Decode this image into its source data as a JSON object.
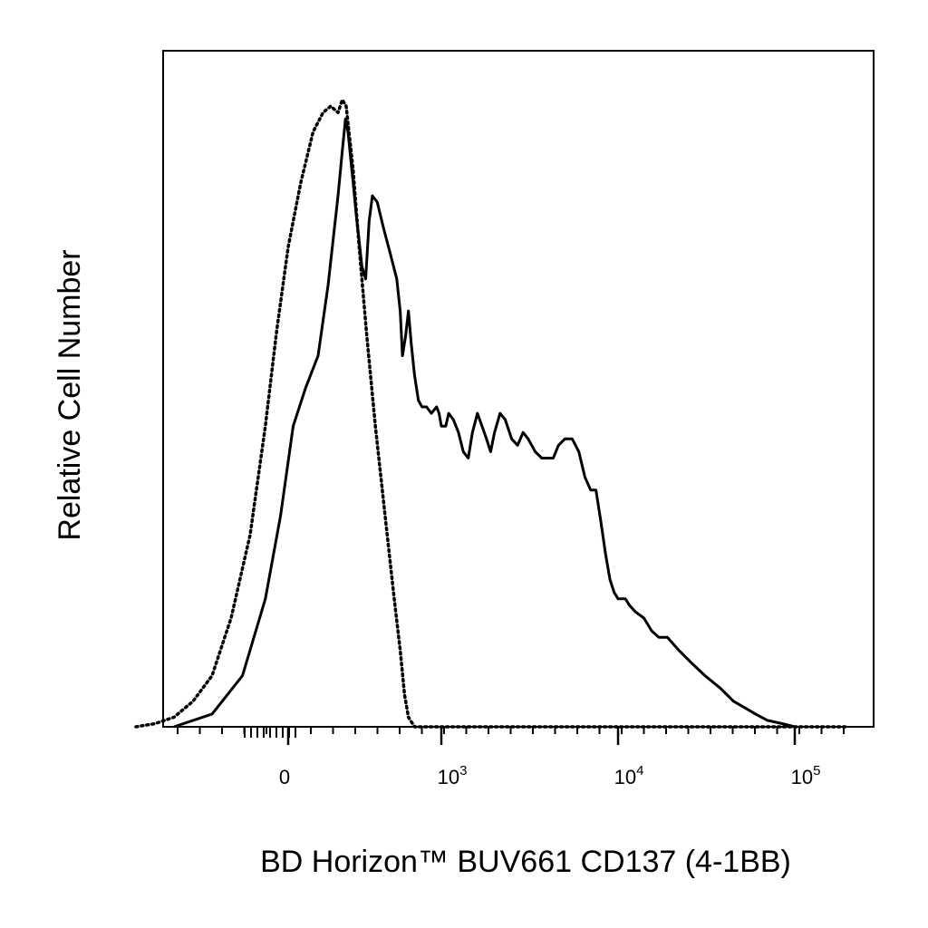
{
  "chart_data": {
    "type": "line",
    "title": "",
    "xlabel": "BD Horizon™ BUV661 CD137 (4-1BB)",
    "ylabel": "Relative Cell Number",
    "x_scale": "biexponential",
    "xlim": [
      -400,
      200000
    ],
    "ylim": [
      0,
      1.0
    ],
    "grid": false,
    "legend": "none",
    "x_ticks": [
      {
        "value": 0,
        "label": "0",
        "exp": ""
      },
      {
        "value": 1000,
        "label": "10",
        "exp": "3"
      },
      {
        "value": 10000,
        "label": "10",
        "exp": "4"
      },
      {
        "value": 100000,
        "label": "10",
        "exp": "5"
      }
    ],
    "series": [
      {
        "style": "solid",
        "color": "#000000",
        "points": [
          [
            -300,
            0.0
          ],
          [
            -200,
            0.02
          ],
          [
            -120,
            0.08
          ],
          [
            -60,
            0.2
          ],
          [
            -20,
            0.33
          ],
          [
            10,
            0.47
          ],
          [
            35,
            0.53
          ],
          [
            60,
            0.58
          ],
          [
            80,
            0.69
          ],
          [
            100,
            0.83
          ],
          [
            110,
            0.9
          ],
          [
            118,
            0.95
          ],
          [
            125,
            0.93
          ],
          [
            140,
            0.85
          ],
          [
            150,
            0.8
          ],
          [
            160,
            0.76
          ],
          [
            170,
            0.72
          ],
          [
            185,
            0.7
          ],
          [
            200,
            0.79
          ],
          [
            215,
            0.83
          ],
          [
            240,
            0.82
          ],
          [
            275,
            0.78
          ],
          [
            320,
            0.74
          ],
          [
            370,
            0.7
          ],
          [
            400,
            0.65
          ],
          [
            420,
            0.58
          ],
          [
            450,
            0.61
          ],
          [
            480,
            0.65
          ],
          [
            510,
            0.6
          ],
          [
            550,
            0.55
          ],
          [
            600,
            0.51
          ],
          [
            650,
            0.5
          ],
          [
            720,
            0.5
          ],
          [
            800,
            0.49
          ],
          [
            900,
            0.5
          ],
          [
            950,
            0.49
          ],
          [
            1000,
            0.47
          ],
          [
            1060,
            0.47
          ],
          [
            1100,
            0.49
          ],
          [
            1170,
            0.48
          ],
          [
            1250,
            0.46
          ],
          [
            1330,
            0.43
          ],
          [
            1420,
            0.42
          ],
          [
            1500,
            0.46
          ],
          [
            1600,
            0.49
          ],
          [
            1700,
            0.47
          ],
          [
            1800,
            0.45
          ],
          [
            1900,
            0.43
          ],
          [
            2000,
            0.46
          ],
          [
            2150,
            0.49
          ],
          [
            2300,
            0.48
          ],
          [
            2500,
            0.45
          ],
          [
            2700,
            0.44
          ],
          [
            2900,
            0.46
          ],
          [
            3100,
            0.45
          ],
          [
            3400,
            0.43
          ],
          [
            3700,
            0.42
          ],
          [
            4000,
            0.42
          ],
          [
            4300,
            0.42
          ],
          [
            4600,
            0.44
          ],
          [
            5000,
            0.45
          ],
          [
            5500,
            0.45
          ],
          [
            6000,
            0.43
          ],
          [
            6500,
            0.39
          ],
          [
            7000,
            0.37
          ],
          [
            7500,
            0.37
          ],
          [
            8000,
            0.32
          ],
          [
            8500,
            0.27
          ],
          [
            9000,
            0.23
          ],
          [
            9500,
            0.21
          ],
          [
            10000,
            0.2
          ],
          [
            10500,
            0.2
          ],
          [
            11000,
            0.2
          ],
          [
            11600,
            0.19
          ],
          [
            12500,
            0.18
          ],
          [
            14000,
            0.17
          ],
          [
            15500,
            0.15
          ],
          [
            17000,
            0.14
          ],
          [
            19000,
            0.14
          ],
          [
            22000,
            0.12
          ],
          [
            26000,
            0.1
          ],
          [
            31000,
            0.08
          ],
          [
            38000,
            0.06
          ],
          [
            45000,
            0.04
          ],
          [
            52000,
            0.03
          ],
          [
            60000,
            0.02
          ],
          [
            70000,
            0.01
          ],
          [
            85000,
            0.005
          ],
          [
            100000,
            0.0
          ]
        ]
      },
      {
        "style": "dotted",
        "color": "#000000",
        "points": [
          [
            -400,
            0.0
          ],
          [
            -350,
            0.005
          ],
          [
            -300,
            0.015
          ],
          [
            -250,
            0.04
          ],
          [
            -200,
            0.08
          ],
          [
            -150,
            0.17
          ],
          [
            -100,
            0.3
          ],
          [
            -60,
            0.47
          ],
          [
            -30,
            0.62
          ],
          [
            0,
            0.75
          ],
          [
            25,
            0.85
          ],
          [
            50,
            0.93
          ],
          [
            70,
            0.96
          ],
          [
            85,
            0.97
          ],
          [
            100,
            0.96
          ],
          [
            110,
            0.98
          ],
          [
            120,
            0.97
          ],
          [
            140,
            0.87
          ],
          [
            160,
            0.75
          ],
          [
            190,
            0.61
          ],
          [
            230,
            0.47
          ],
          [
            290,
            0.32
          ],
          [
            350,
            0.2
          ],
          [
            400,
            0.12
          ],
          [
            440,
            0.05
          ],
          [
            480,
            0.015
          ],
          [
            550,
            0.0
          ],
          [
            200000,
            0.0
          ]
        ]
      }
    ]
  }
}
